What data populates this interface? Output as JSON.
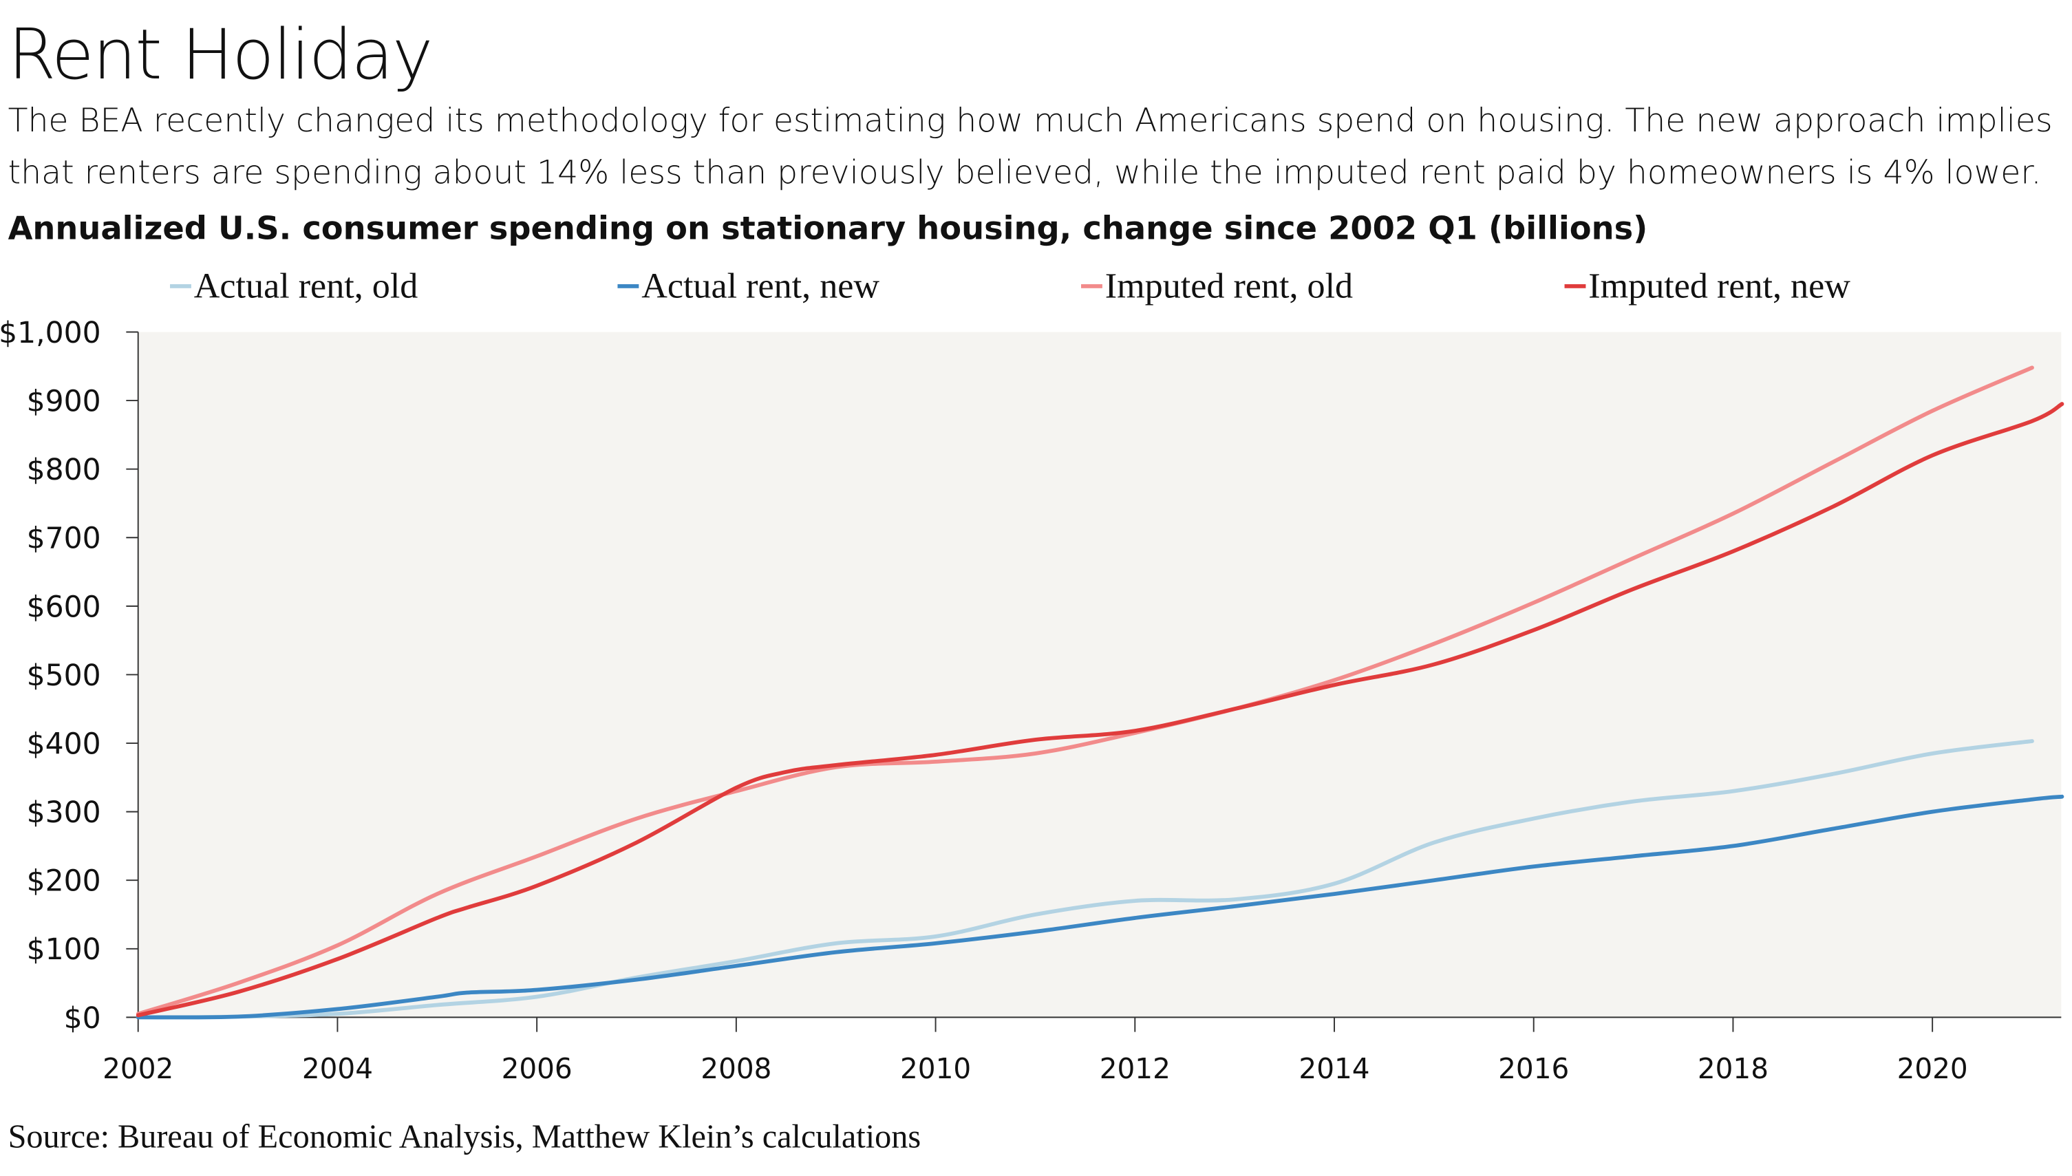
{
  "header": {
    "title": "Rent Holiday",
    "subtitle_line1": "The BEA recently changed its methodology for estimating how much Americans spend on housing. The new approach implies",
    "subtitle_line2": "that renters are spending about 14% less than previously believed, while the imputed rent paid by homeowners is 4% lower."
  },
  "source": "Source: Bureau of Economic Analysis, Matthew Klein’s calculations",
  "chart_data": {
    "type": "line",
    "title": "Annualized U.S. consumer spending on stationary housing, change since 2002 Q1 (billions)",
    "xlabel": "",
    "ylabel": "",
    "ylim": [
      0,
      1000
    ],
    "xlim": [
      2002,
      2021.3
    ],
    "grid": false,
    "legend_position": "top",
    "yticks": [
      "$0",
      "$100",
      "$200",
      "$300",
      "$400",
      "$500",
      "$600",
      "$700",
      "$800",
      "$900",
      "$1,000"
    ],
    "ytick_values": [
      0,
      100,
      200,
      300,
      400,
      500,
      600,
      700,
      800,
      900,
      1000
    ],
    "xticks": [
      "2002",
      "2004",
      "2006",
      "2008",
      "2010",
      "2012",
      "2014",
      "2016",
      "2018",
      "2020"
    ],
    "xtick_values": [
      2002,
      2004,
      2006,
      2008,
      2010,
      2012,
      2014,
      2016,
      2018,
      2020
    ],
    "background": "#f5f4f1",
    "series": [
      {
        "name": "Actual rent, old",
        "color": "#b3d3e3",
        "x": [
          2002,
          2003,
          2004,
          2005,
          2006,
          2007,
          2008,
          2009,
          2010,
          2011,
          2012,
          2013,
          2014,
          2015,
          2016,
          2017,
          2018,
          2019,
          2020,
          2021
        ],
        "y": [
          0,
          1,
          5,
          18,
          30,
          58,
          82,
          108,
          118,
          150,
          170,
          172,
          195,
          255,
          290,
          315,
          330,
          355,
          385,
          403
        ]
      },
      {
        "name": "Actual rent, new",
        "color": "#3c87c4",
        "x": [
          2002,
          2003,
          2004,
          2005,
          2005.3,
          2006,
          2007,
          2008,
          2009,
          2010,
          2011,
          2012,
          2013,
          2014,
          2015,
          2016,
          2017,
          2018,
          2019,
          2020,
          2021,
          2021.3
        ],
        "y": [
          0,
          1,
          12,
          30,
          36,
          40,
          55,
          75,
          95,
          108,
          125,
          145,
          162,
          180,
          200,
          220,
          235,
          250,
          275,
          300,
          318,
          322
        ]
      },
      {
        "name": "Imputed rent, old",
        "color": "#f28b8b",
        "x": [
          2002,
          2003,
          2004,
          2005,
          2006,
          2007,
          2008,
          2009,
          2010,
          2011,
          2012,
          2013,
          2014,
          2015,
          2016,
          2017,
          2018,
          2019,
          2020,
          2021
        ],
        "y": [
          5,
          50,
          105,
          180,
          235,
          290,
          330,
          365,
          373,
          385,
          415,
          450,
          492,
          545,
          605,
          670,
          735,
          810,
          885,
          948
        ]
      },
      {
        "name": "Imputed rent, new",
        "color": "#e03c3c",
        "x": [
          2002,
          2003,
          2004,
          2005,
          2005.3,
          2006,
          2007,
          2008,
          2008.5,
          2009,
          2010,
          2011,
          2012,
          2013,
          2014,
          2015,
          2016,
          2017,
          2018,
          2019,
          2020,
          2021,
          2021.3
        ],
        "y": [
          3,
          37,
          85,
          145,
          160,
          192,
          255,
          335,
          358,
          368,
          383,
          405,
          418,
          450,
          485,
          515,
          565,
          625,
          680,
          745,
          820,
          870,
          895
        ]
      }
    ]
  }
}
